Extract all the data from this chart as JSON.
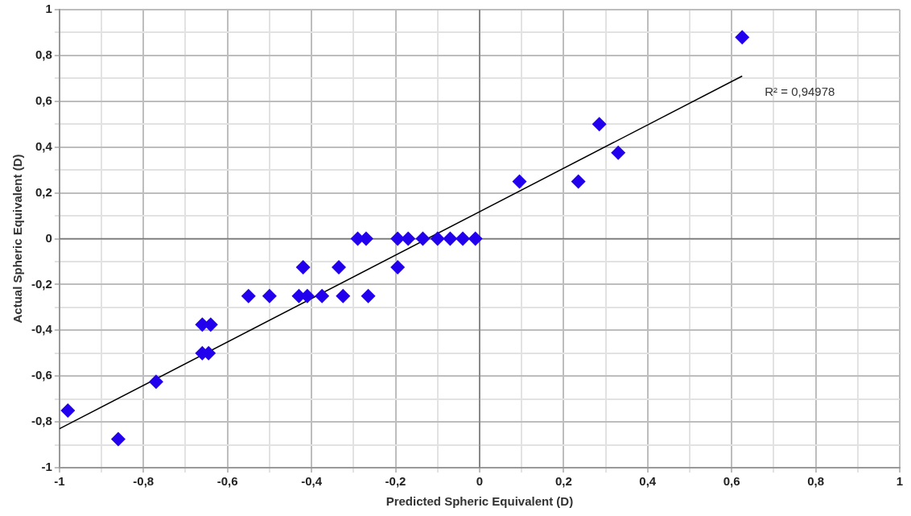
{
  "chart_data": {
    "type": "scatter",
    "xlabel": "Predicted Spheric Equivalent (D)",
    "ylabel": "Actual Spheric Equivalent (D)",
    "annotations": [
      "R² = 0,94978"
    ],
    "marker": "diamond",
    "grid": true,
    "xlim": [
      -1,
      1
    ],
    "ylim": [
      -1,
      1
    ],
    "xticks": [
      {
        "value": -1,
        "label": "-1"
      },
      {
        "value": -0.9,
        "label": null
      },
      {
        "value": -0.8,
        "label": "-0,8"
      },
      {
        "value": -0.7,
        "label": null
      },
      {
        "value": -0.6,
        "label": "-0,6"
      },
      {
        "value": -0.5,
        "label": null
      },
      {
        "value": -0.4,
        "label": "-0,4"
      },
      {
        "value": -0.3,
        "label": null
      },
      {
        "value": -0.2,
        "label": "-0,2"
      },
      {
        "value": -0.1,
        "label": null
      },
      {
        "value": 0,
        "label": "0"
      },
      {
        "value": 0.1,
        "label": null
      },
      {
        "value": 0.2,
        "label": "0,2"
      },
      {
        "value": 0.3,
        "label": null
      },
      {
        "value": 0.4,
        "label": "0,4"
      },
      {
        "value": 0.5,
        "label": null
      },
      {
        "value": 0.6,
        "label": "0,6"
      },
      {
        "value": 0.7,
        "label": null
      },
      {
        "value": 0.8,
        "label": "0,8"
      },
      {
        "value": 0.9,
        "label": null
      },
      {
        "value": 1,
        "label": "1"
      }
    ],
    "yticks": [
      {
        "value": -1,
        "label": "-1"
      },
      {
        "value": -0.9,
        "label": null
      },
      {
        "value": -0.8,
        "label": "-0,8"
      },
      {
        "value": -0.7,
        "label": null
      },
      {
        "value": -0.6,
        "label": "-0,6"
      },
      {
        "value": -0.5,
        "label": null
      },
      {
        "value": -0.4,
        "label": "-0,4"
      },
      {
        "value": -0.3,
        "label": null
      },
      {
        "value": -0.2,
        "label": "-0,2"
      },
      {
        "value": -0.1,
        "label": null
      },
      {
        "value": 0,
        "label": "0"
      },
      {
        "value": 0.1,
        "label": null
      },
      {
        "value": 0.2,
        "label": "0,2"
      },
      {
        "value": 0.3,
        "label": null
      },
      {
        "value": 0.4,
        "label": "0,4"
      },
      {
        "value": 0.5,
        "label": null
      },
      {
        "value": 0.6,
        "label": "0,6"
      },
      {
        "value": 0.7,
        "label": null
      },
      {
        "value": 0.8,
        "label": "0,8"
      },
      {
        "value": 0.9,
        "label": null
      },
      {
        "value": 1,
        "label": "1"
      }
    ],
    "series": [
      {
        "color": "#2200ee",
        "x": [
          -0.98,
          -0.86,
          -0.77,
          -0.66,
          -0.64,
          -0.66,
          -0.645,
          -0.55,
          -0.5,
          -0.43,
          -0.41,
          -0.375,
          -0.325,
          -0.265,
          -0.42,
          -0.335,
          -0.29,
          -0.27,
          -0.195,
          -0.195,
          -0.17,
          -0.135,
          -0.1,
          -0.07,
          -0.04,
          -0.01,
          0.095,
          0.235,
          0.285,
          0.33,
          0.625
        ],
        "values": [
          -0.75,
          -0.875,
          -0.625,
          -0.375,
          -0.375,
          -0.5,
          -0.5,
          -0.25,
          -0.25,
          -0.25,
          -0.25,
          -0.25,
          -0.25,
          -0.25,
          -0.125,
          -0.125,
          0,
          0,
          -0.125,
          0,
          0,
          0,
          0,
          0,
          0,
          0,
          0.25,
          0.25,
          0.5,
          0.375,
          0.88
        ]
      },
      {
        "type": "line",
        "color": "#000000",
        "marker": "none",
        "x": [
          -1,
          0.625
        ],
        "values": [
          -0.83,
          0.71
        ]
      }
    ]
  }
}
